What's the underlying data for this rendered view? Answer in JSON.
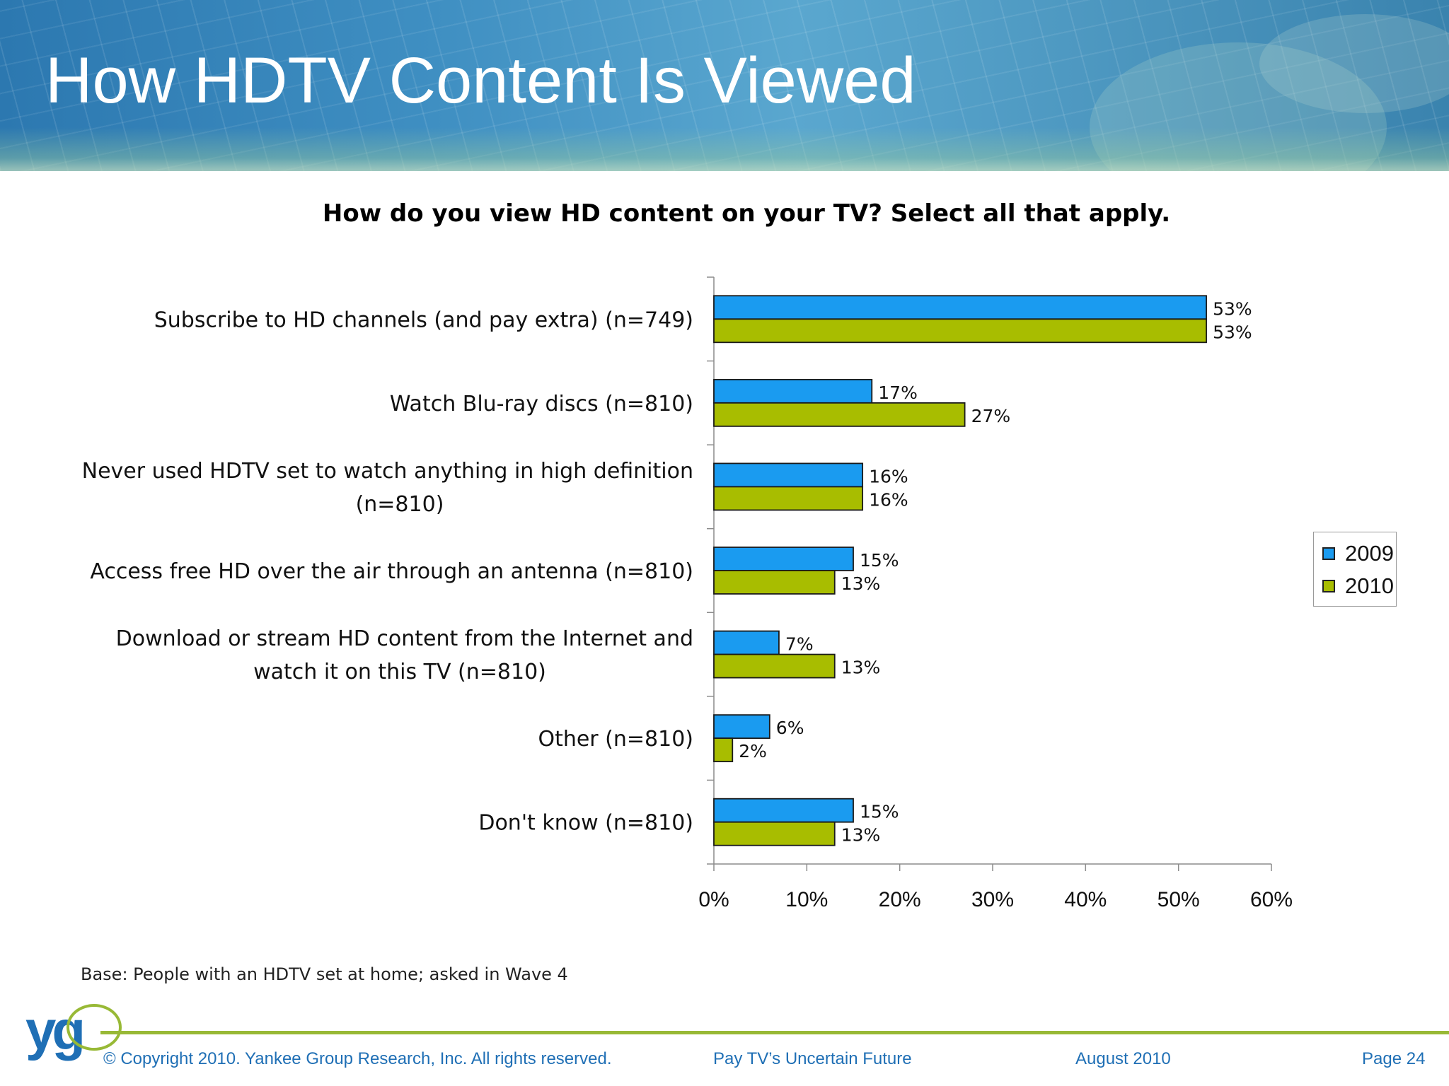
{
  "slide": {
    "title": "How HDTV Content Is Viewed",
    "base_note": "Base: People with an HDTV set at home; asked in Wave 4"
  },
  "footer": {
    "logo": "yg",
    "copyright": "© Copyright 2010. Yankee Group Research, Inc.  All rights reserved.",
    "report": "Pay TV’s Uncertain Future",
    "date": "August 2010",
    "page": "Page 24"
  },
  "colors": {
    "series_2009": "#1a9bf0",
    "series_2010": "#a8bd00",
    "accent_green": "#98b936",
    "footer_blue": "#1f6fb5"
  },
  "chart_data": {
    "type": "bar",
    "orientation": "horizontal",
    "title": "How do you view HD content on your TV? Select all that apply.",
    "categories": [
      [
        "Subscribe to HD channels (and pay extra) (n=749)"
      ],
      [
        "Watch Blu-ray discs (n=810)"
      ],
      [
        "Never used HDTV set to watch anything in high definition",
        "(n=810)"
      ],
      [
        "Access free HD over the air through an antenna (n=810)"
      ],
      [
        "Download or stream HD content from the Internet and",
        "watch it on this TV (n=810)"
      ],
      [
        "Other (n=810)"
      ],
      [
        "Don't know (n=810)"
      ]
    ],
    "series": [
      {
        "name": "2009",
        "values": [
          53,
          17,
          16,
          15,
          7,
          6,
          15
        ],
        "labels": [
          "53%",
          "17%",
          "16%",
          "15%",
          "7%",
          "6%",
          "15%"
        ]
      },
      {
        "name": "2010",
        "values": [
          53,
          27,
          16,
          13,
          13,
          2,
          13
        ],
        "labels": [
          "53%",
          "27%",
          "16%",
          "13%",
          "13%",
          "2%",
          "13%"
        ]
      }
    ],
    "xlim": [
      0,
      60
    ],
    "xticks": [
      "0%",
      "10%",
      "20%",
      "30%",
      "40%",
      "50%",
      "60%"
    ],
    "legend_position": "right",
    "grid": false
  }
}
